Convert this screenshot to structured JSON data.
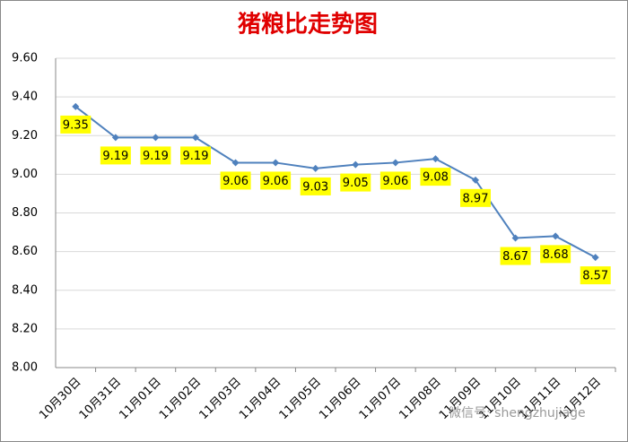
{
  "chart_data": {
    "type": "line",
    "title": "猪粮比走势图",
    "categories": [
      "10月30日",
      "10月31日",
      "11月01日",
      "11月02日",
      "11月03日",
      "11月04日",
      "11月05日",
      "11月06日",
      "11月07日",
      "11月08日",
      "11月09日",
      "11月10日",
      "11月11日",
      "11月12日"
    ],
    "series": [
      {
        "name": "猪粮比",
        "color": "#4f81bd",
        "values": [
          9.35,
          9.19,
          9.19,
          9.19,
          9.06,
          9.06,
          9.03,
          9.05,
          9.06,
          9.08,
          8.97,
          8.67,
          8.68,
          8.57
        ]
      }
    ],
    "label_color": "#ffff00",
    "ylim": [
      8.0,
      9.6
    ],
    "yticks": [
      {
        "value": 8.0,
        "label": "8.00"
      },
      {
        "value": 8.2,
        "label": "8.20"
      },
      {
        "value": 8.4,
        "label": "8.40"
      },
      {
        "value": 8.6,
        "label": "8.60"
      },
      {
        "value": 8.8,
        "label": "8.80"
      },
      {
        "value": 9.0,
        "label": "9.00"
      },
      {
        "value": 9.2,
        "label": "9.20"
      },
      {
        "value": 9.4,
        "label": "9.40"
      },
      {
        "value": 9.6,
        "label": "9.60"
      }
    ],
    "grid": true,
    "watermark": "微信号: shengzhujiage"
  }
}
